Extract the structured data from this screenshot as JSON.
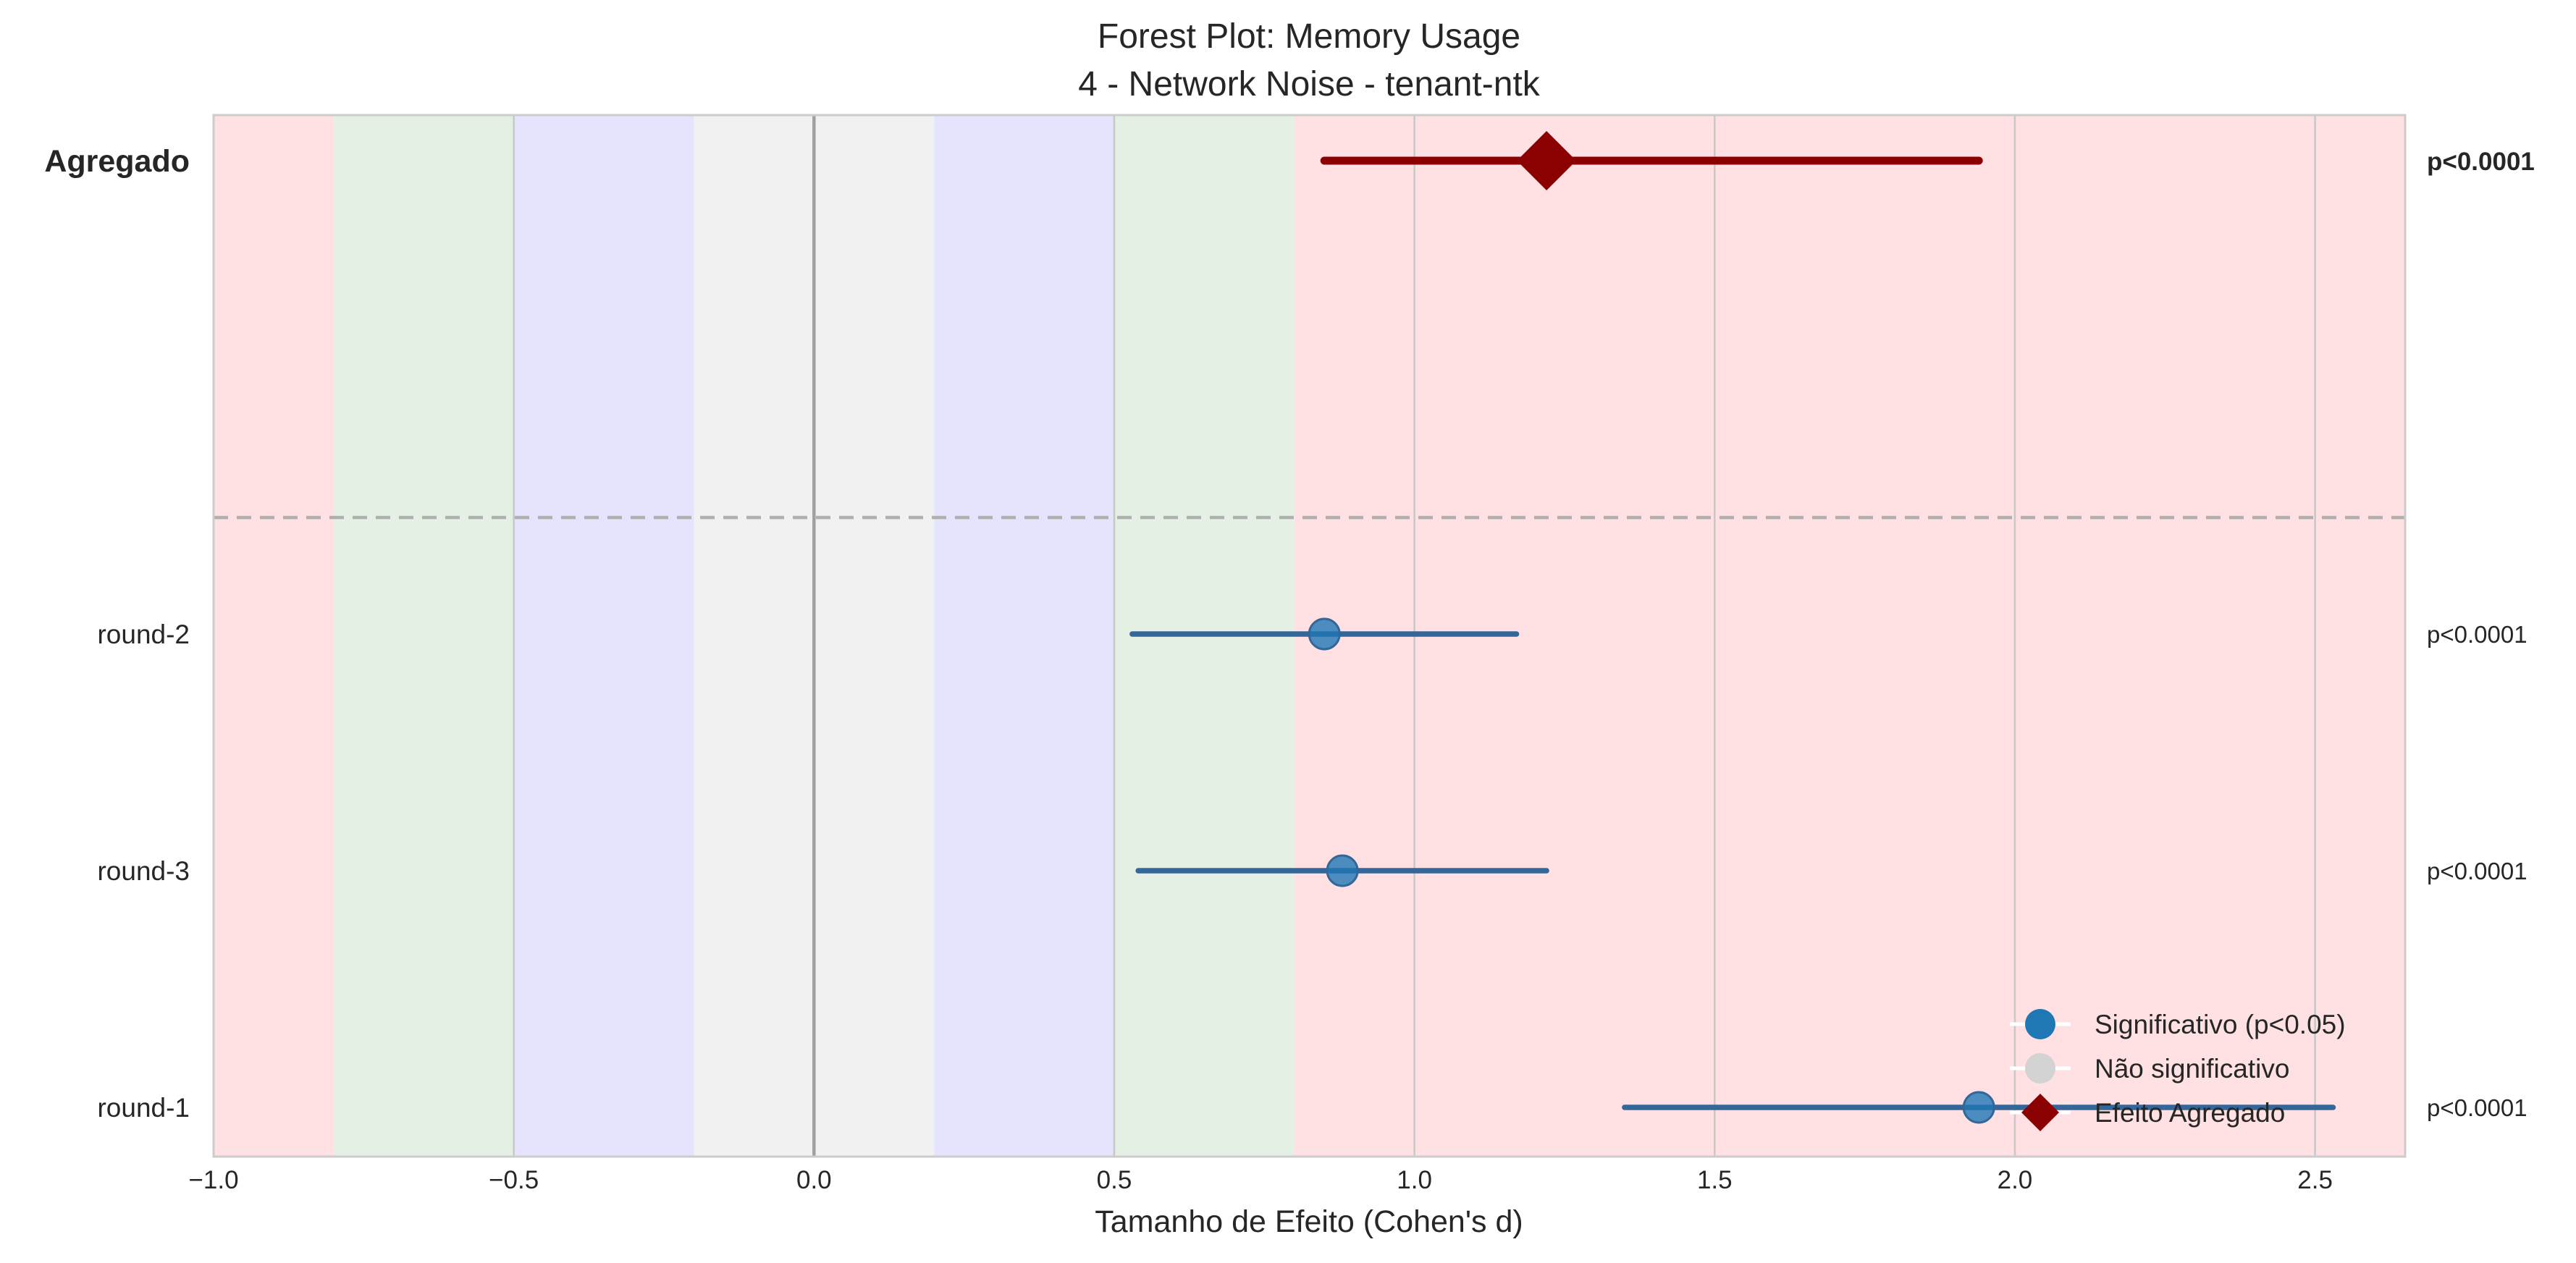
{
  "chart_data": {
    "type": "forest",
    "title": "Forest Plot: Memory Usage",
    "subtitle": "4 - Network Noise - tenant-ntk",
    "xlabel": "Tamanho de Efeito (Cohen's d)",
    "xlim": [
      -1.0,
      2.65
    ],
    "xticks": [
      -1.0,
      -0.5,
      0.0,
      0.5,
      1.0,
      1.5,
      2.0,
      2.5
    ],
    "xtick_labels": [
      "−1.0",
      "−0.5",
      "0.0",
      "0.5",
      "1.0",
      "1.5",
      "2.0",
      "2.5"
    ],
    "grid": true,
    "effect_bands": [
      {
        "from": -1.0,
        "to": -0.8,
        "color": "#ffe0e3"
      },
      {
        "from": -0.8,
        "to": -0.5,
        "color": "#e4f0e4"
      },
      {
        "from": -0.5,
        "to": -0.2,
        "color": "#e4e4fe"
      },
      {
        "from": -0.2,
        "to": 0.2,
        "color": "#f1f1f1"
      },
      {
        "from": 0.2,
        "to": 0.5,
        "color": "#e4e4fe"
      },
      {
        "from": 0.5,
        "to": 0.8,
        "color": "#e4f0e4"
      },
      {
        "from": 0.8,
        "to": 2.65,
        "color": "#ffe0e3"
      }
    ],
    "aggregate": {
      "label": "Agregado",
      "estimate": 1.22,
      "ci": [
        0.85,
        1.94
      ],
      "p_label": "p<0.0001"
    },
    "rows": [
      {
        "label": "round-2",
        "estimate": 0.85,
        "ci": [
          0.53,
          1.17
        ],
        "p_label": "p<0.0001",
        "significant": true
      },
      {
        "label": "round-3",
        "estimate": 0.88,
        "ci": [
          0.54,
          1.22
        ],
        "p_label": "p<0.0001",
        "significant": true
      },
      {
        "label": "round-1",
        "estimate": 1.94,
        "ci": [
          1.35,
          2.53
        ],
        "p_label": "p<0.0001",
        "significant": true
      }
    ],
    "legend": {
      "placement": "lower-right",
      "entries": [
        {
          "label": "Significativo (p<0.05)",
          "marker": "circle",
          "color": "#1f77b4"
        },
        {
          "label": "Não significativo",
          "marker": "circle",
          "color": "#d3d3d3"
        },
        {
          "label": "Efeito Agregado",
          "marker": "diamond",
          "color": "#8b0000"
        }
      ]
    },
    "colors": {
      "significant_point": "#1f77b4",
      "significant_line": "#336699",
      "aggregate": "#8b0000",
      "separator": "#b0b0b0",
      "zero_line": "#a0a0a0"
    }
  }
}
